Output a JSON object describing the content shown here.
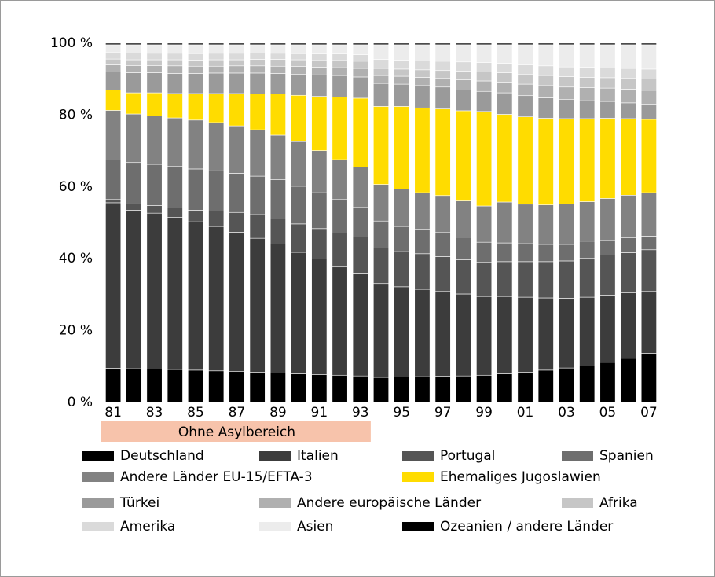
{
  "chart_data": {
    "type": "stacked_bar",
    "categories": [
      "81",
      null,
      "83",
      null,
      "85",
      null,
      "87",
      null,
      "89",
      null,
      "91",
      null,
      "93",
      null,
      "95",
      null,
      "97",
      null,
      "99",
      null,
      "01",
      null,
      "03",
      null,
      "05",
      null,
      "07"
    ],
    "ylim": [
      0,
      100
    ],
    "yticks": [
      {
        "value": 0,
        "label": "0 %"
      },
      {
        "value": 20,
        "label": "20 %"
      },
      {
        "value": 40,
        "label": "40 %"
      },
      {
        "value": 60,
        "label": "60 %"
      },
      {
        "value": 80,
        "label": "80 %"
      },
      {
        "value": 100,
        "label": "100 %"
      }
    ],
    "annotation": "Ohne Asylbereich",
    "series": [
      {
        "name": "Deutschland",
        "color": "#000000",
        "values": [
          9.5,
          9.4,
          9.3,
          9.2,
          9.0,
          8.8,
          8.6,
          8.4,
          8.2,
          8.0,
          7.8,
          7.6,
          7.4,
          7.0,
          7.1,
          7.2,
          7.3,
          7.4,
          7.6,
          8.0,
          8.4,
          9.0,
          9.6,
          10.2,
          11.2,
          12.3,
          13.7
        ]
      },
      {
        "name": "Italien",
        "color": "#3c3c3c",
        "values": [
          46.1,
          44.1,
          43.4,
          42.3,
          41.3,
          40.2,
          38.8,
          37.3,
          35.9,
          33.8,
          32.1,
          30.1,
          28.6,
          26.1,
          25.1,
          24.3,
          23.6,
          22.8,
          21.9,
          21.5,
          20.9,
          20.1,
          19.4,
          19.1,
          18.7,
          18.2,
          17.2
        ]
      },
      {
        "name": "Portugal",
        "color": "#555555",
        "values": [
          0.9,
          1.8,
          2.1,
          2.7,
          3.2,
          4.3,
          5.5,
          6.6,
          7.0,
          7.9,
          8.5,
          9.5,
          10.1,
          9.9,
          9.8,
          9.9,
          9.7,
          9.5,
          9.5,
          9.7,
          9.9,
          10.1,
          10.4,
          10.8,
          11.1,
          11.2,
          11.6
        ]
      },
      {
        "name": "Spanien",
        "color": "#6e6e6e",
        "values": [
          11.0,
          11.5,
          11.5,
          11.5,
          11.5,
          11.2,
          10.9,
          10.7,
          10.9,
          10.5,
          10.0,
          9.3,
          8.2,
          7.5,
          7.0,
          6.8,
          6.7,
          6.3,
          5.6,
          5.2,
          5.0,
          4.8,
          4.6,
          4.8,
          4.1,
          4.1,
          3.8
        ]
      },
      {
        "name": "Andere Länder EU-15/EFTA-3",
        "color": "#828282",
        "values": [
          13.8,
          13.5,
          13.5,
          13.5,
          13.6,
          13.4,
          13.2,
          12.9,
          12.4,
          12.4,
          11.7,
          11.1,
          11.2,
          10.2,
          10.4,
          10.2,
          10.3,
          10.1,
          10.1,
          11.4,
          11.0,
          11.0,
          11.3,
          11.0,
          11.7,
          11.9,
          12.1
        ]
      },
      {
        "name": "Ehemaliges Jugoslawien",
        "color": "#ffdc00",
        "values": [
          5.7,
          5.9,
          6.4,
          6.8,
          7.4,
          8.1,
          9.0,
          10.0,
          11.5,
          12.9,
          15.1,
          17.4,
          19.2,
          21.7,
          23.0,
          23.6,
          24.1,
          25.1,
          26.3,
          24.4,
          24.3,
          24.1,
          23.7,
          23.1,
          22.3,
          21.3,
          20.4
        ]
      },
      {
        "name": "Türkei",
        "color": "#9a9a9a",
        "values": [
          5.0,
          5.6,
          5.6,
          5.6,
          5.6,
          5.7,
          5.7,
          5.8,
          5.7,
          5.9,
          6.0,
          6.0,
          5.9,
          6.4,
          6.2,
          6.2,
          6.1,
          5.8,
          5.6,
          6.0,
          5.9,
          5.7,
          5.4,
          5.0,
          4.7,
          4.4,
          4.2
        ]
      },
      {
        "name": "Andere europäische Länder",
        "color": "#b0b0b0",
        "values": [
          2.0,
          2.0,
          2.0,
          2.1,
          2.0,
          1.9,
          2.0,
          2.0,
          2.0,
          2.1,
          2.1,
          2.2,
          2.4,
          2.2,
          2.2,
          2.3,
          2.4,
          2.8,
          2.9,
          3.0,
          3.2,
          3.4,
          3.4,
          3.6,
          3.7,
          3.8,
          3.9
        ]
      },
      {
        "name": "Afrika",
        "color": "#c6c6c6",
        "values": [
          1.6,
          1.6,
          1.6,
          1.7,
          1.7,
          1.8,
          1.7,
          1.8,
          1.9,
          1.9,
          1.9,
          2.0,
          2.0,
          2.0,
          2.0,
          2.1,
          2.2,
          2.4,
          2.5,
          2.6,
          2.8,
          2.8,
          2.9,
          2.9,
          2.9,
          3.0,
          3.1
        ]
      },
      {
        "name": "Amerika",
        "color": "#dadada",
        "values": [
          1.8,
          1.9,
          1.8,
          1.8,
          1.8,
          1.8,
          1.8,
          1.8,
          1.7,
          1.7,
          1.8,
          1.8,
          1.8,
          2.5,
          2.5,
          2.5,
          2.6,
          2.6,
          2.6,
          2.6,
          2.6,
          2.7,
          2.7,
          2.8,
          2.7,
          2.8,
          2.8
        ]
      },
      {
        "name": "Asien",
        "color": "#ececec",
        "values": [
          2.2,
          2.3,
          2.4,
          2.4,
          2.5,
          2.4,
          2.4,
          2.3,
          2.4,
          2.5,
          2.6,
          2.6,
          2.8,
          4.1,
          4.3,
          4.5,
          4.6,
          4.8,
          5.0,
          5.2,
          5.6,
          5.9,
          6.2,
          6.3,
          6.5,
          6.6,
          6.8
        ]
      },
      {
        "name": "Ozeanien / andere Länder",
        "color": "#000000",
        "values": [
          0.4,
          0.4,
          0.4,
          0.4,
          0.4,
          0.4,
          0.4,
          0.4,
          0.4,
          0.4,
          0.4,
          0.4,
          0.4,
          0.4,
          0.4,
          0.4,
          0.4,
          0.4,
          0.4,
          0.4,
          0.4,
          0.4,
          0.4,
          0.4,
          0.4,
          0.4,
          0.4
        ]
      }
    ]
  }
}
